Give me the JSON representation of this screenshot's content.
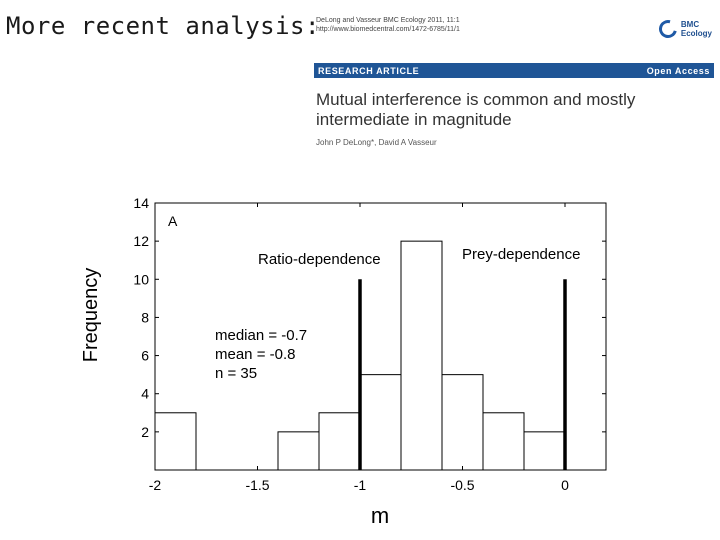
{
  "slide": {
    "title": "More recent analysis:"
  },
  "paper": {
    "citation_line1": "DeLong and Vasseur BMC Ecology 2011, 11:1",
    "citation_line2": "http://www.biomedcentral.com/1472-6785/11/1",
    "publisher_line1": "BMC",
    "publisher_line2": "Ecology",
    "article_type": "RESEARCH ARTICLE",
    "access": "Open Access",
    "headline": "Mutual interference is common and mostly intermediate in magnitude",
    "authors": "John P DeLong*, David A Vasseur",
    "accent": "#1f5596"
  },
  "chart_data": {
    "type": "bar",
    "xlabel": "m",
    "ylabel": "Frequency",
    "xlim": [
      -2,
      0.2
    ],
    "ylim": [
      0,
      14
    ],
    "xticks": [
      "-2",
      "-1.5",
      "-1",
      "-0.5",
      "0"
    ],
    "yticks": [
      "2",
      "4",
      "6",
      "8",
      "10",
      "12",
      "14"
    ],
    "bins": [
      {
        "x0": -2.0,
        "x1": -1.8,
        "value": 3
      },
      {
        "x0": -1.8,
        "x1": -1.6,
        "value": 0
      },
      {
        "x0": -1.6,
        "x1": -1.4,
        "value": 0
      },
      {
        "x0": -1.4,
        "x1": -1.2,
        "value": 2
      },
      {
        "x0": -1.2,
        "x1": -1.0,
        "value": 3
      },
      {
        "x0": -1.0,
        "x1": -0.8,
        "value": 5
      },
      {
        "x0": -0.8,
        "x1": -0.6,
        "value": 12
      },
      {
        "x0": -0.6,
        "x1": -0.4,
        "value": 5
      },
      {
        "x0": -0.4,
        "x1": -0.2,
        "value": 3
      },
      {
        "x0": -0.2,
        "x1": 0.0,
        "value": 2
      }
    ],
    "reference_lines": [
      {
        "x": -1,
        "top": 10,
        "label": "Ratio-dependence"
      },
      {
        "x": 0,
        "top": 10,
        "label": "Prey-dependence"
      }
    ],
    "panel_label": "A",
    "annotations": [
      "median = -0.7",
      "mean = -0.8",
      "n = 35"
    ]
  }
}
